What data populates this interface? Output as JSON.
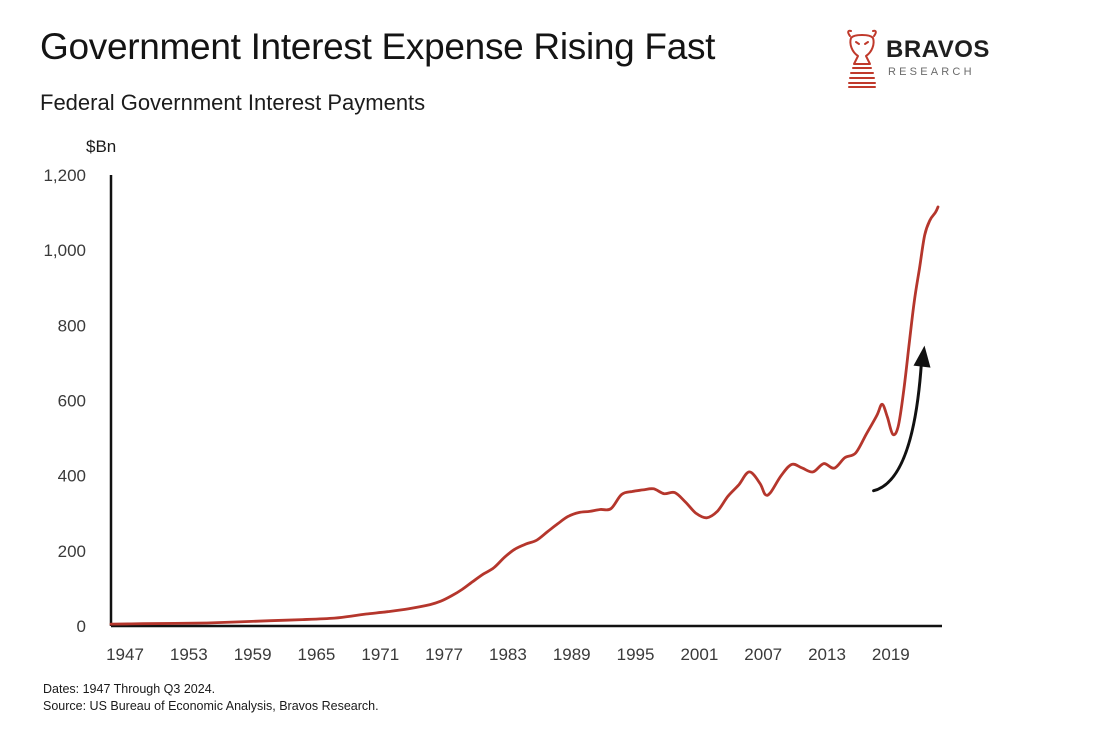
{
  "brand": {
    "name": "BRAVOS",
    "tagline": "RESEARCH",
    "accent": "#c0392b"
  },
  "chart_data": {
    "type": "line",
    "title": "Government Interest Expense Rising Fast",
    "subtitle": "Federal Government Interest Payments",
    "ylabel": "$Bn",
    "ylim": [
      0,
      1200
    ],
    "yticks": [
      0,
      200,
      400,
      600,
      800,
      1000,
      1200
    ],
    "ytick_labels": [
      "0",
      "200",
      "400",
      "600",
      "800",
      "1,000",
      "1,200"
    ],
    "xlim": [
      1947,
      2024.75
    ],
    "xticks": [
      1947,
      1953,
      1959,
      1965,
      1971,
      1977,
      1983,
      1989,
      1995,
      2001,
      2007,
      2013,
      2019
    ],
    "xtick_labels": [
      "1947",
      "1953",
      "1959",
      "1965",
      "1971",
      "1977",
      "1983",
      "1989",
      "1995",
      "2001",
      "2007",
      "2013",
      "2019"
    ],
    "series": [
      {
        "name": "Federal Government Interest Payments",
        "color": "#b5362c",
        "x": [
          1947,
          1950,
          1953,
          1956,
          1959,
          1962,
          1965,
          1968,
          1970,
          1971,
          1973,
          1975,
          1977,
          1978,
          1979,
          1980,
          1981,
          1982,
          1983,
          1984,
          1985,
          1986,
          1987,
          1988,
          1989,
          1990,
          1991,
          1992,
          1993,
          1994,
          1995,
          1996,
          1997,
          1998,
          1999,
          2000,
          2001,
          2002,
          2003,
          2004,
          2005,
          2006,
          2007,
          2008,
          2008.5,
          2009,
          2010,
          2011,
          2012,
          2013,
          2014,
          2015,
          2016,
          2017,
          2018,
          2019,
          2019.5,
          2020,
          2020.5,
          2021,
          2021.5,
          2022,
          2022.5,
          2023,
          2023.5,
          2024,
          2024.5,
          2024.75
        ],
        "values": [
          5,
          6,
          7,
          8,
          11,
          14,
          17,
          21,
          28,
          32,
          38,
          46,
          57,
          66,
          80,
          97,
          118,
          138,
          155,
          183,
          205,
          218,
          228,
          250,
          272,
          292,
          302,
          305,
          310,
          312,
          350,
          358,
          362,
          365,
          352,
          355,
          330,
          300,
          288,
          305,
          345,
          375,
          410,
          380,
          350,
          355,
          400,
          430,
          420,
          410,
          432,
          420,
          448,
          460,
          510,
          560,
          590,
          555,
          510,
          530,
          620,
          740,
          860,
          950,
          1040,
          1080,
          1100,
          1115
        ]
      }
    ],
    "annotations": [
      {
        "type": "arrow",
        "from": [
          2018.7,
          360
        ],
        "to": [
          2023.2,
          730
        ],
        "color": "#111111"
      }
    ]
  },
  "footnotes": {
    "dates": "Dates: 1947 Through Q3 2024.",
    "source": "Source: US Bureau of Economic Analysis, Bravos Research."
  }
}
